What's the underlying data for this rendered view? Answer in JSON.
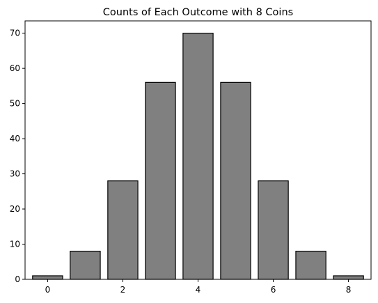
{
  "chart_data": {
    "type": "bar",
    "title": "Counts of Each Outcome with 8 Coins",
    "xlabel": "",
    "ylabel": "",
    "x": [
      0,
      1,
      2,
      3,
      4,
      5,
      6,
      7,
      8
    ],
    "values": [
      1,
      8,
      28,
      56,
      70,
      56,
      28,
      8,
      1
    ],
    "xlim": [
      -0.6,
      8.6
    ],
    "ylim": [
      0,
      73.5
    ],
    "xticks": [
      0,
      2,
      4,
      6,
      8
    ],
    "yticks": [
      0,
      10,
      20,
      30,
      40,
      50,
      60,
      70
    ],
    "bar_color": "#808080",
    "edge_color": "#000000",
    "grid": false,
    "legend": "none"
  }
}
